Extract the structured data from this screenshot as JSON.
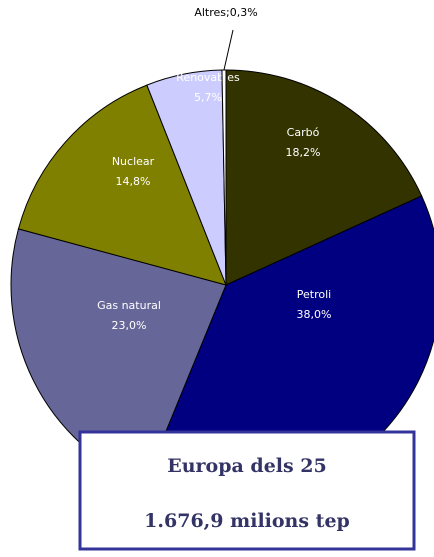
{
  "chart_data": {
    "type": "pie",
    "categories": [
      "Carbó",
      "Petroli",
      "Gas natural",
      "Nuclear",
      "Renovables",
      "Altres"
    ],
    "values": [
      18.2,
      38.0,
      23.0,
      14.8,
      5.7,
      0.3
    ],
    "value_labels": [
      "18,2%",
      "38,0%",
      "23,0%",
      "14,8%",
      "5,7%",
      "0,3%"
    ],
    "label_separator": ";",
    "colors": [
      "#333300",
      "#000080",
      "#666699",
      "#808000",
      "#ccccff",
      "#ffffff"
    ],
    "annotations": [
      "Europa dels 25",
      "1.676,9 milions tep"
    ]
  }
}
